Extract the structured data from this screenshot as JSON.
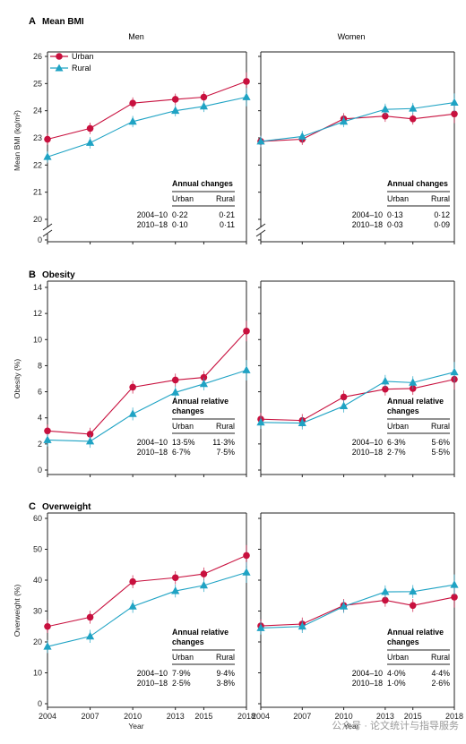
{
  "colors": {
    "urban": "#c8103e",
    "rural": "#1fa3c4",
    "frame": "#222222"
  },
  "legend": {
    "urban": "Urban",
    "rural": "Rural"
  },
  "columns": {
    "men": "Men",
    "women": "Women"
  },
  "x_title": "Year",
  "watermark": "公众号 · 论文统计与指导服务",
  "chart_data": [
    {
      "type": "line",
      "letter": "A",
      "title": "Mean BMI",
      "ylabel": "Mean BMI (kg/m²)",
      "x": [
        2004,
        2007,
        2010,
        2013,
        2015,
        2018
      ],
      "ylim": [
        20,
        26
      ],
      "yticks": [
        "20",
        "21",
        "22",
        "23",
        "24",
        "25",
        "26"
      ],
      "baseline_tick": "0",
      "men": {
        "urban": [
          22.95,
          23.35,
          24.28,
          24.42,
          24.5,
          25.08
        ],
        "rural": [
          22.3,
          22.82,
          23.6,
          24.0,
          24.16,
          24.5
        ]
      },
      "women": {
        "urban": [
          22.87,
          22.95,
          23.7,
          23.8,
          23.7,
          23.88
        ],
        "rural": [
          22.87,
          23.05,
          23.6,
          24.05,
          24.08,
          24.3
        ]
      },
      "annotation": {
        "heading": "Annual changes",
        "cols": [
          "Urban",
          "Rural"
        ],
        "men": [
          [
            "2004–10",
            "0·22",
            "0·21"
          ],
          [
            "2010–18",
            "0·10",
            "0·11"
          ]
        ],
        "women": [
          [
            "2004–10",
            "0·13",
            "0·12"
          ],
          [
            "2010–18",
            "0·03",
            "0·09"
          ]
        ]
      }
    },
    {
      "type": "line",
      "letter": "B",
      "title": "Obesity",
      "ylabel": "Obesity (%)",
      "x": [
        2004,
        2007,
        2010,
        2013,
        2015,
        2018
      ],
      "ylim": [
        0,
        14
      ],
      "yticks": [
        "0",
        "2",
        "4",
        "6",
        "8",
        "10",
        "12",
        "14"
      ],
      "men": {
        "urban": [
          3.0,
          2.75,
          6.35,
          6.9,
          7.1,
          10.65
        ],
        "rural": [
          2.3,
          2.2,
          4.3,
          5.95,
          6.6,
          7.65
        ]
      },
      "women": {
        "urban": [
          3.9,
          3.8,
          5.6,
          6.2,
          6.25,
          6.95
        ],
        "rural": [
          3.65,
          3.6,
          4.9,
          6.8,
          6.7,
          7.5
        ]
      },
      "annotation": {
        "heading": "Annual relative",
        "heading2": "changes",
        "cols": [
          "Urban",
          "Rural"
        ],
        "men": [
          [
            "2004–10",
            "13·5%",
            "11·3%"
          ],
          [
            "2010–18",
            "6·7%",
            "7·5%"
          ]
        ],
        "women": [
          [
            "2004–10",
            "6·3%",
            "5·6%"
          ],
          [
            "2010–18",
            "2·7%",
            "5·5%"
          ]
        ]
      }
    },
    {
      "type": "line",
      "letter": "C",
      "title": "Overweight",
      "ylabel": "Overweight (%)",
      "x": [
        2004,
        2007,
        2010,
        2013,
        2015,
        2018
      ],
      "xticks": [
        "2004",
        "2007",
        "2010",
        "2013",
        "2015",
        "2018"
      ],
      "ylim": [
        0,
        60
      ],
      "yticks": [
        "0",
        "10",
        "20",
        "30",
        "40",
        "50",
        "60"
      ],
      "men": {
        "urban": [
          25.0,
          28.0,
          39.5,
          40.8,
          42.0,
          48.0
        ],
        "rural": [
          18.5,
          21.8,
          31.5,
          36.5,
          38.3,
          42.5
        ]
      },
      "women": {
        "urban": [
          25.2,
          25.8,
          31.8,
          33.5,
          31.8,
          34.5
        ],
        "rural": [
          24.5,
          25.0,
          31.5,
          36.2,
          36.3,
          38.5
        ]
      },
      "annotation": {
        "heading": "Annual relative",
        "heading2": "changes",
        "cols": [
          "Urban",
          "Rural"
        ],
        "men": [
          [
            "2004–10",
            "7·9%",
            "9·4%"
          ],
          [
            "2010–18",
            "2·5%",
            "3·8%"
          ]
        ],
        "women": [
          [
            "2004–10",
            "4·0%",
            "4·4%"
          ],
          [
            "2010–18",
            "1·0%",
            "2·6%"
          ]
        ]
      }
    }
  ]
}
